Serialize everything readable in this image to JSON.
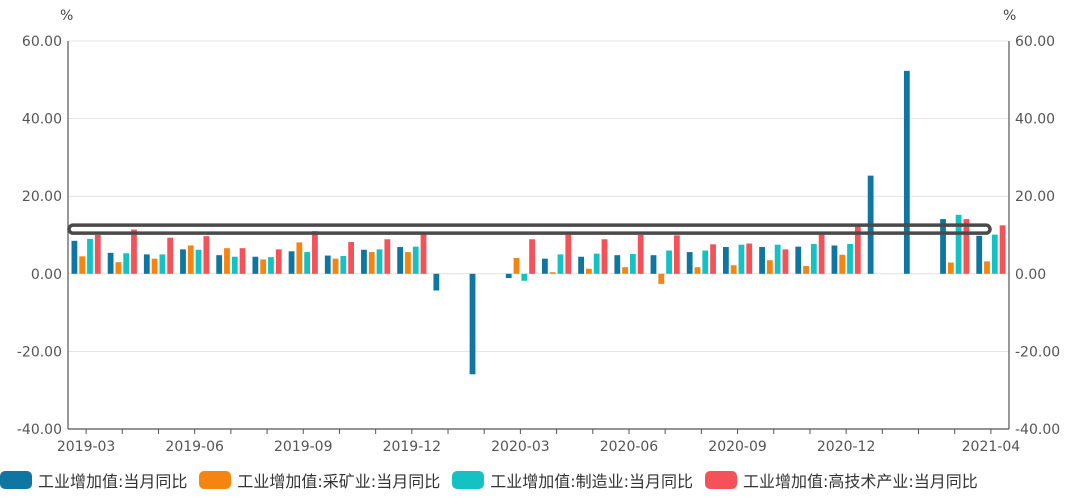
{
  "chart_data": {
    "type": "bar",
    "title": "",
    "xlabel": "",
    "y_unit_left": "%",
    "y_unit_right": "%",
    "ylim": [
      -40,
      60
    ],
    "yticks": [
      -40,
      -20,
      0,
      20,
      40,
      60
    ],
    "ytick_labels": [
      "-40.00",
      "-20.00",
      "0.00",
      "20.00",
      "40.00",
      "60.00"
    ],
    "grid": true,
    "legend_position": "bottom",
    "reference_line_value": 11.5,
    "categories": [
      "2019-03",
      "2019-04",
      "2019-05",
      "2019-06",
      "2019-07",
      "2019-08",
      "2019-09",
      "2019-10",
      "2019-11",
      "2019-12",
      "2020-01",
      "2020-02",
      "2020-03",
      "2020-04",
      "2020-05",
      "2020-06",
      "2020-07",
      "2020-08",
      "2020-09",
      "2020-10",
      "2020-11",
      "2020-12",
      "2021-01",
      "2021-02",
      "2021-03",
      "2021-04"
    ],
    "xtick_labels": [
      "2019-03",
      "2019-06",
      "2019-09",
      "2019-12",
      "2020-03",
      "2020-06",
      "2020-09",
      "2020-12",
      "2021-04"
    ],
    "series": [
      {
        "name": "工业增加值:当月同比",
        "color": "#0e76a0",
        "values": [
          8.5,
          5.4,
          5.0,
          6.3,
          4.8,
          4.4,
          5.8,
          4.7,
          6.2,
          6.9,
          -4.3,
          -25.9,
          -1.1,
          3.9,
          4.4,
          4.8,
          4.8,
          5.6,
          6.9,
          6.9,
          7.0,
          7.3,
          25.3,
          52.3,
          14.1,
          9.8
        ]
      },
      {
        "name": "工业增加值:采矿业:当月同比",
        "color": "#f58410",
        "values": [
          4.5,
          3.0,
          3.9,
          7.3,
          6.6,
          3.7,
          8.1,
          3.9,
          5.6,
          5.6,
          null,
          null,
          4.1,
          0.4,
          1.3,
          1.7,
          -2.6,
          1.7,
          2.2,
          3.5,
          2.0,
          4.9,
          null,
          null,
          2.9,
          3.2
        ]
      },
      {
        "name": "工业增加值:制造业:当月同比",
        "color": "#15c2c3",
        "values": [
          9.0,
          5.3,
          5.0,
          6.2,
          4.4,
          4.3,
          5.6,
          4.6,
          6.3,
          7.0,
          null,
          null,
          -1.8,
          5.0,
          5.2,
          5.1,
          6.0,
          6.0,
          7.5,
          7.5,
          7.7,
          7.7,
          null,
          null,
          15.2,
          10.1
        ]
      },
      {
        "name": "工业增加值:高技术产业:当月同比",
        "color": "#f45258",
        "values": [
          10.0,
          11.4,
          9.3,
          9.7,
          6.6,
          6.3,
          11.0,
          8.2,
          8.9,
          10.2,
          null,
          null,
          8.9,
          10.5,
          8.9,
          10.0,
          9.9,
          7.6,
          7.8,
          6.3,
          10.7,
          12.4,
          null,
          null,
          14.1,
          12.5
        ]
      }
    ]
  }
}
